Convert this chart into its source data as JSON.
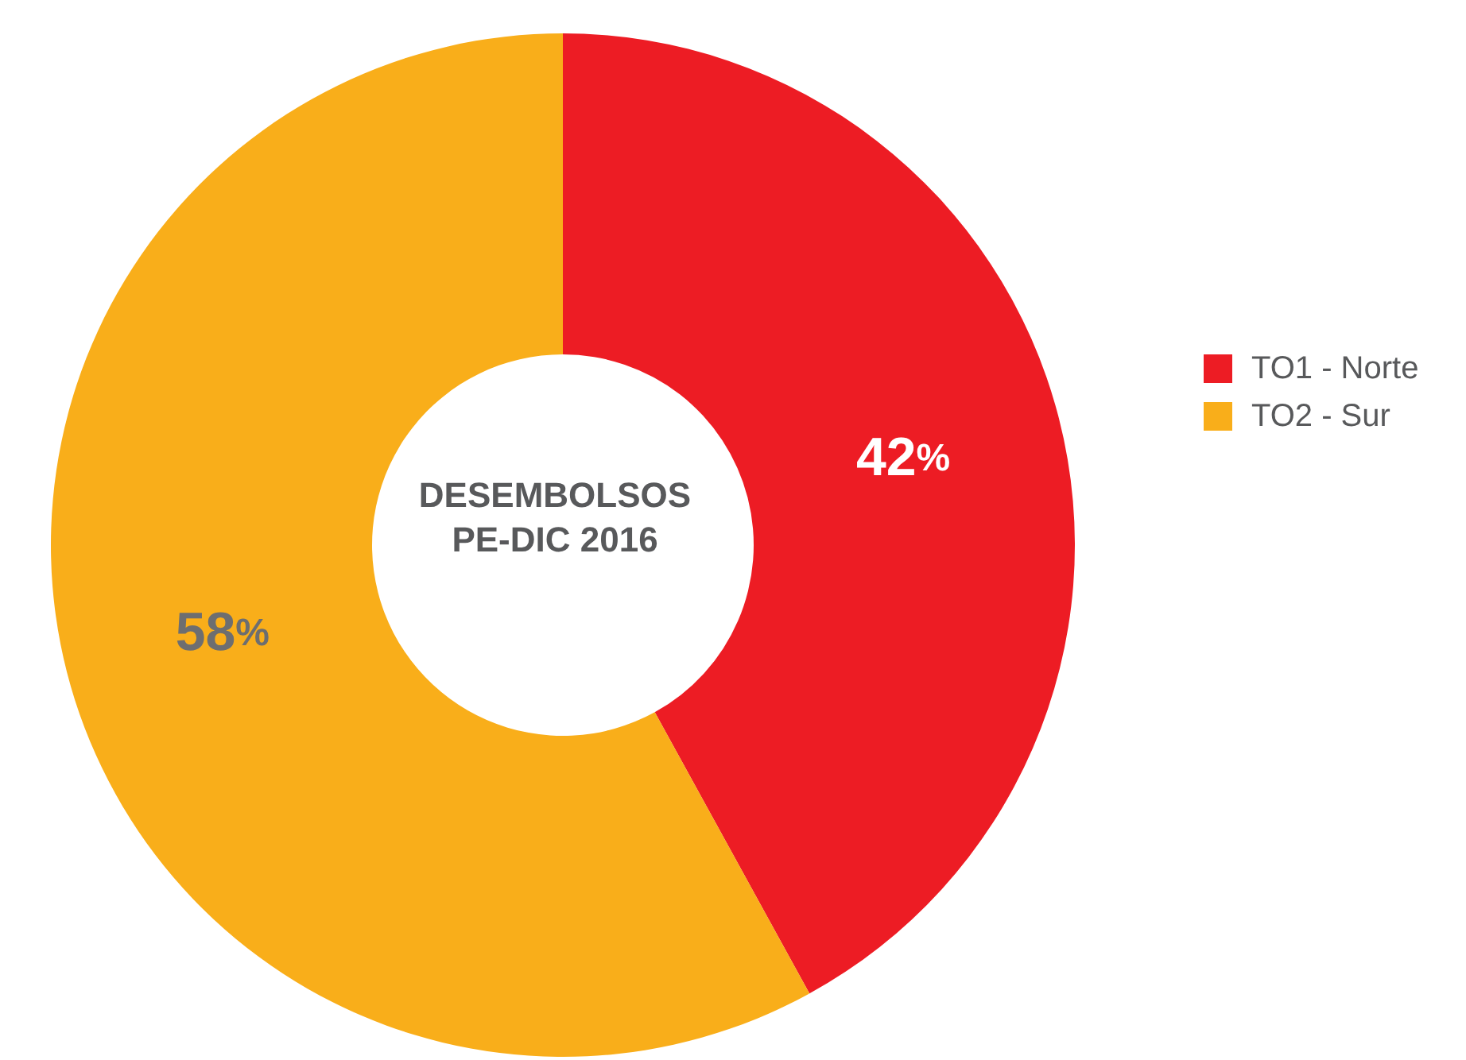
{
  "chart_data": {
    "type": "donut",
    "title": "DESEMBOLSOS PE-DIC 2016",
    "categories": [
      "TO1 - Norte",
      "TO2 - Sur"
    ],
    "values": [
      42,
      58
    ],
    "colors": [
      "#ed1c24",
      "#f9ae1a"
    ],
    "value_labels": [
      "42%",
      "58%"
    ],
    "legend": "right"
  }
}
